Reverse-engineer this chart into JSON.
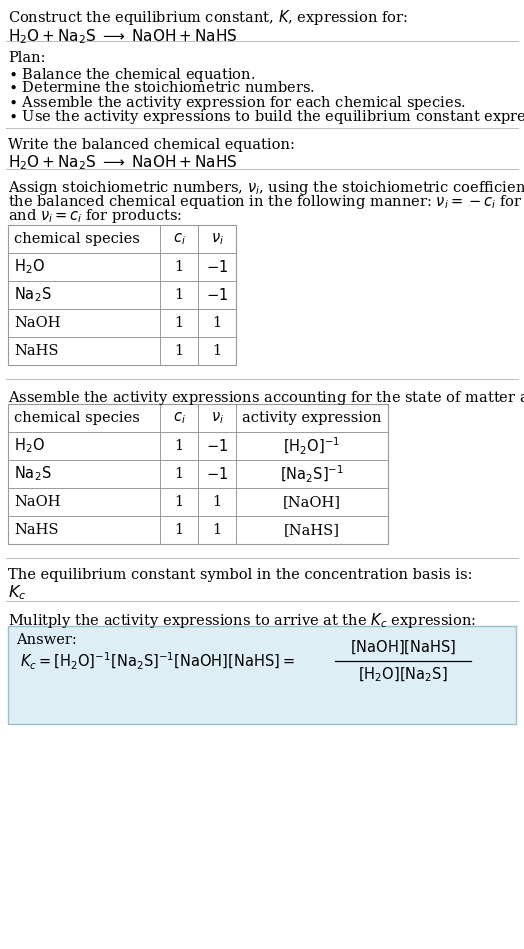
{
  "title_line1": "Construct the equilibrium constant, $K$, expression for:",
  "title_line2": "$\\mathrm{H_2O + Na_2S \\;\\longrightarrow\\; NaOH + NaHS}$",
  "plan_header": "Plan:",
  "plan_items": [
    "$\\bullet$ Balance the chemical equation.",
    "$\\bullet$ Determine the stoichiometric numbers.",
    "$\\bullet$ Assemble the activity expression for each chemical species.",
    "$\\bullet$ Use the activity expressions to build the equilibrium constant expression."
  ],
  "balanced_eq_header": "Write the balanced chemical equation:",
  "balanced_eq": "$\\mathrm{H_2O + Na_2S \\;\\longrightarrow\\; NaOH + NaHS}$",
  "stoich_lines": [
    "Assign stoichiometric numbers, $\\nu_i$, using the stoichiometric coefficients, $c_i$, from",
    "the balanced chemical equation in the following manner: $\\nu_i = -c_i$ for reactants",
    "and $\\nu_i = c_i$ for products:"
  ],
  "table1_headers": [
    "chemical species",
    "$c_i$",
    "$\\nu_i$"
  ],
  "table1_rows": [
    [
      "$\\mathrm{H_2O}$",
      "1",
      "$-1$"
    ],
    [
      "$\\mathrm{Na_2S}$",
      "1",
      "$-1$"
    ],
    [
      "NaOH",
      "1",
      "1"
    ],
    [
      "NaHS",
      "1",
      "1"
    ]
  ],
  "activity_header": "Assemble the activity expressions accounting for the state of matter and $\\nu_i$:",
  "table2_headers": [
    "chemical species",
    "$c_i$",
    "$\\nu_i$",
    "activity expression"
  ],
  "table2_rows": [
    [
      "$\\mathrm{H_2O}$",
      "1",
      "$-1$",
      "$[\\mathrm{H_2O}]^{-1}$"
    ],
    [
      "$\\mathrm{Na_2S}$",
      "1",
      "$-1$",
      "$[\\mathrm{Na_2S}]^{-1}$"
    ],
    [
      "NaOH",
      "1",
      "1",
      "[NaOH]"
    ],
    [
      "NaHS",
      "1",
      "1",
      "[NaHS]"
    ]
  ],
  "kc_header": "The equilibrium constant symbol in the concentration basis is:",
  "kc_symbol": "$K_c$",
  "multiply_header": "Mulitply the activity expressions to arrive at the $K_c$ expression:",
  "answer_label": "Answer:",
  "bg_color": "#ffffff",
  "answer_bg": "#deeef5",
  "answer_border": "#9bbfcf",
  "text_color": "#000000",
  "sep_color": "#bbbbbb",
  "font_size": 10.5,
  "small_font": 9.5
}
